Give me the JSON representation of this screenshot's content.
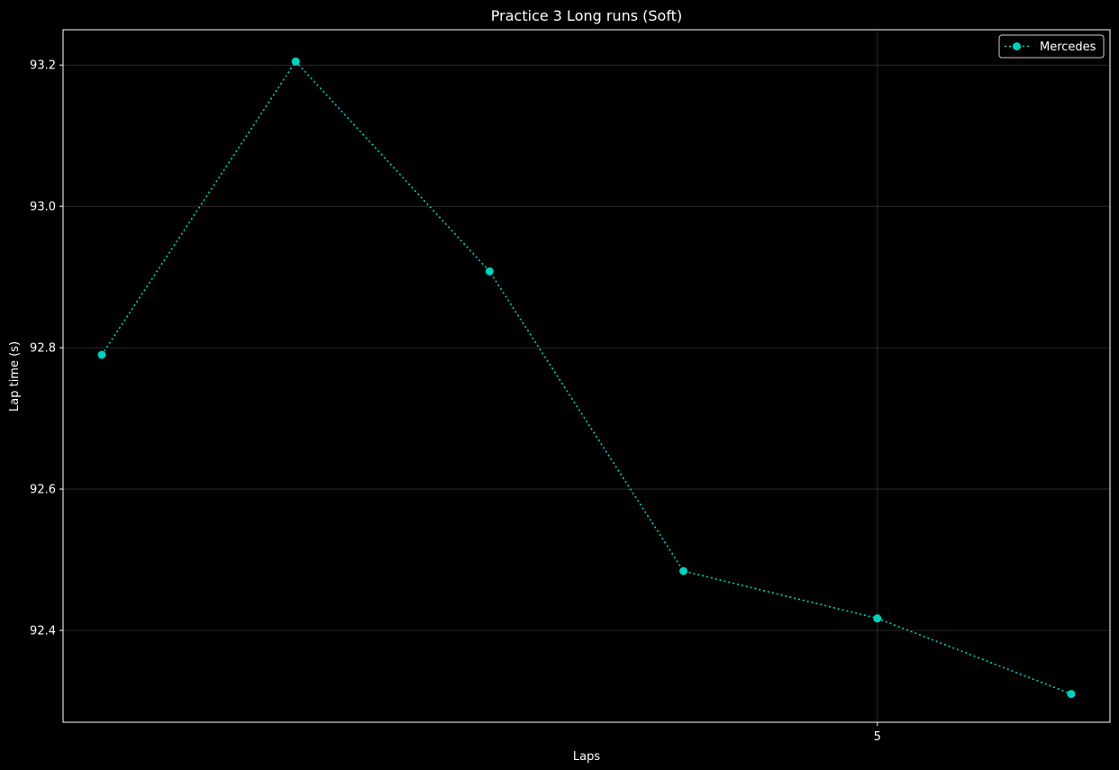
{
  "chart_data": {
    "type": "line",
    "title": "Practice 3 Long runs (Soft)",
    "xlabel": "Laps",
    "ylabel": "Lap time (s)",
    "xlim": [
      0.8,
      6.2
    ],
    "ylim": [
      92.27,
      93.25
    ],
    "xticks": [
      {
        "value": 5,
        "label": "5"
      }
    ],
    "yticks": [
      {
        "value": 92.4,
        "label": "92.4"
      },
      {
        "value": 92.6,
        "label": "92.6"
      },
      {
        "value": 92.8,
        "label": "92.8"
      },
      {
        "value": 93.0,
        "label": "93.0"
      },
      {
        "value": 93.2,
        "label": "93.2"
      }
    ],
    "grid": true,
    "legend_position": "top-right",
    "series": [
      {
        "name": "Mercedes",
        "color": "#00d2be",
        "line_style": "dotted",
        "marker": "circle",
        "x": [
          1,
          2,
          3,
          4,
          5,
          6
        ],
        "y": [
          92.79,
          93.205,
          92.908,
          92.484,
          92.417,
          92.31
        ]
      }
    ]
  }
}
